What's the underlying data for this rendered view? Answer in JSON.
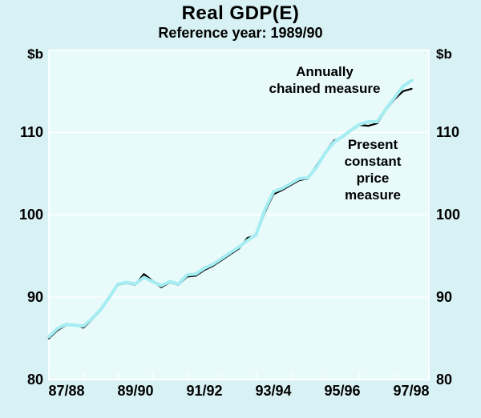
{
  "page": {
    "title": "Real GDP(E)",
    "subtitle": "Reference year: 1989/90"
  },
  "colors": {
    "background": "#d8f1f4",
    "plot_background": "#e8fafa",
    "grid": "#ffffff",
    "text": "#000000",
    "chained_line": "#a4edf2",
    "constant_price_line": "#000000"
  },
  "chart_data": {
    "type": "line",
    "title": "Real GDP(E)",
    "subtitle": "Reference year: 1989/90",
    "unit_left": "$b",
    "unit_right": "$b",
    "ylim": [
      80,
      120
    ],
    "y_tick_values": [
      110,
      100,
      90,
      80
    ],
    "x_tick_labels": [
      "87/88",
      "89/90",
      "91/92",
      "93/94",
      "95/96",
      "97/98"
    ],
    "x_span_quarters": 44,
    "x_minor_tick_intervals": 11,
    "grid": "horizontal",
    "legend": "none",
    "frequency": "quarterly",
    "annotations": [
      "Annually\nchained measure",
      "Present\nconstant\nprice\nmeasure"
    ],
    "series": [
      {
        "name": "Annually chained measure",
        "color": "#a4edf2",
        "line_width": 4,
        "values": [
          85.2,
          86.2,
          86.7,
          86.6,
          86.5,
          87.4,
          88.5,
          90.0,
          91.6,
          91.8,
          91.6,
          92.4,
          91.9,
          91.4,
          91.9,
          91.6,
          92.7,
          92.8,
          93.5,
          94.0,
          94.7,
          95.4,
          96.1,
          96.9,
          97.6,
          100.6,
          102.8,
          103.2,
          103.8,
          104.4,
          104.5,
          105.8,
          107.5,
          108.8,
          109.5,
          110.3,
          111.0,
          111.3,
          111.3,
          112.8,
          114.2,
          115.6,
          116.3
        ]
      },
      {
        "name": "Present constant price measure",
        "color": "#000000",
        "line_width": 2.2,
        "values": [
          85.0,
          86.0,
          86.6,
          86.7,
          86.3,
          87.3,
          88.4,
          90.1,
          91.5,
          91.7,
          91.5,
          92.8,
          92.0,
          91.2,
          91.8,
          91.5,
          92.5,
          92.6,
          93.3,
          93.8,
          94.5,
          95.2,
          95.9,
          97.2,
          97.5,
          100.3,
          102.5,
          103.0,
          103.6,
          104.2,
          104.4,
          106.0,
          107.6,
          109.0,
          109.4,
          110.2,
          110.9,
          110.8,
          111.1,
          112.7,
          114.0,
          115.0,
          115.3
        ]
      }
    ]
  }
}
